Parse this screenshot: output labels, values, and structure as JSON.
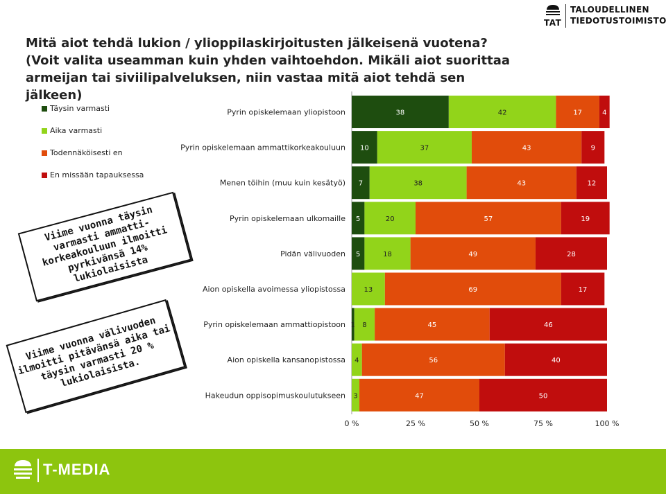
{
  "logo": {
    "abbr": "TAT",
    "line1": "TALOUDELLINEN",
    "line2": "TIEDOTUSTOIMISTO"
  },
  "title": "Mitä aiot tehdä lukion / ylioppilaskirjoitusten jälkeisenä vuotena? (Voit valita useamman kuin yhden vaihtoehdon. Mikäli aiot suorittaa armeijan tai siviilipalveluksen, niin vastaa mitä aiot tehdä sen jälkeen)",
  "callouts": {
    "first": "Viime vuonna täysin varmasti ammatti-korkeakouluun ilmoitti pyrkivänsä 14% lukiolaisista",
    "second": "Viime vuonna välivuoden ilmoitti pitävänsä aika tai täysin varmasti 20 % lukiolaisista."
  },
  "footer": {
    "brand": "T-MEDIA"
  },
  "colors": {
    "series": [
      "#1e4d0f",
      "#92d41a",
      "#e14c0b",
      "#c00d0d"
    ],
    "value_text": [
      "#ffffff",
      "#222222",
      "#ffffff",
      "#ffffff"
    ],
    "footer": "#8dc50e"
  },
  "chart_data": {
    "type": "bar",
    "orientation": "horizontal",
    "stacked": true,
    "title": "",
    "xlabel": "",
    "ylabel": "",
    "xlim": [
      0,
      100
    ],
    "xticks": [
      "0 %",
      "25 %",
      "50 %",
      "75 %",
      "100 %"
    ],
    "legend": "left",
    "categories": [
      "Pyrin opiskelemaan yliopistoon",
      "Pyrin opiskelemaan ammattikorkeakouluun",
      "Menen töihin (muu kuin kesätyö)",
      "Pyrin opiskelemaan ulkomaille",
      "Pidän välivuoden",
      "Aion opiskella avoimessa yliopistossa",
      "Pyrin opiskelemaan ammattiopistoon",
      "Aion opiskella kansanopistossa",
      "Hakeudun oppisopimuskoulutukseen"
    ],
    "series": [
      {
        "name": "Täysin varmasti",
        "values": [
          38,
          10,
          7,
          5,
          5,
          0,
          1,
          0,
          0
        ]
      },
      {
        "name": "Aika varmasti",
        "values": [
          42,
          37,
          38,
          20,
          18,
          13,
          8,
          4,
          3
        ]
      },
      {
        "name": "Todennäköisesti en",
        "values": [
          17,
          43,
          43,
          57,
          49,
          69,
          45,
          56,
          47
        ]
      },
      {
        "name": "En missään tapauksessa",
        "values": [
          4,
          9,
          12,
          19,
          28,
          17,
          46,
          40,
          50
        ]
      }
    ]
  }
}
